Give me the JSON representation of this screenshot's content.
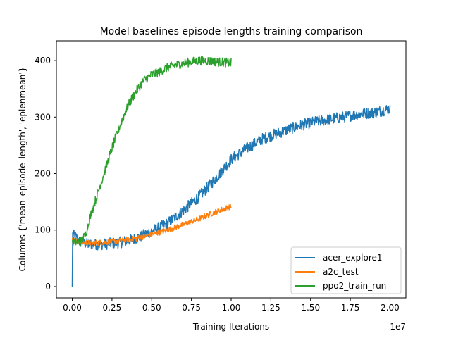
{
  "chart_data": {
    "type": "line",
    "title": "Model baselines episode lengths training comparison",
    "xlabel": "Training Iterations",
    "ylabel": "Columns {'mean_episode_length', 'eplenmean'}",
    "x_scale_label": "1e7",
    "xlim": [
      -0.1,
      2.1
    ],
    "ylim": [
      -20,
      435
    ],
    "x_ticks": [
      0.0,
      0.25,
      0.5,
      0.75,
      1.0,
      1.25,
      1.5,
      1.75,
      2.0
    ],
    "x_tick_labels": [
      "0.00",
      "0.25",
      "0.50",
      "0.75",
      "1.00",
      "1.25",
      "1.50",
      "1.75",
      "2.00"
    ],
    "y_ticks": [
      0,
      100,
      200,
      300,
      400
    ],
    "y_tick_labels": [
      "0",
      "100",
      "200",
      "300",
      "400"
    ],
    "legend_position": "lower-right",
    "series": [
      {
        "name": "acer_explore1",
        "color": "#1f77b4",
        "noise": 10,
        "points": [
          [
            0.0,
            0
          ],
          [
            0.002,
            92
          ],
          [
            0.02,
            88
          ],
          [
            0.05,
            80
          ],
          [
            0.1,
            75
          ],
          [
            0.2,
            75
          ],
          [
            0.3,
            78
          ],
          [
            0.4,
            85
          ],
          [
            0.5,
            98
          ],
          [
            0.6,
            112
          ],
          [
            0.7,
            135
          ],
          [
            0.8,
            160
          ],
          [
            0.9,
            190
          ],
          [
            1.0,
            225
          ],
          [
            1.1,
            245
          ],
          [
            1.2,
            262
          ],
          [
            1.3,
            272
          ],
          [
            1.4,
            282
          ],
          [
            1.5,
            290
          ],
          [
            1.6,
            295
          ],
          [
            1.7,
            300
          ],
          [
            1.8,
            305
          ],
          [
            1.9,
            308
          ],
          [
            2.0,
            315
          ]
        ]
      },
      {
        "name": "a2c_test",
        "color": "#ff7f0e",
        "noise": 5,
        "points": [
          [
            0.0,
            82
          ],
          [
            0.1,
            77
          ],
          [
            0.2,
            78
          ],
          [
            0.3,
            81
          ],
          [
            0.4,
            85
          ],
          [
            0.5,
            92
          ],
          [
            0.6,
            100
          ],
          [
            0.7,
            110
          ],
          [
            0.8,
            120
          ],
          [
            0.9,
            132
          ],
          [
            1.0,
            142
          ]
        ]
      },
      {
        "name": "ppo2_train_run",
        "color": "#2ca02c",
        "noise": 8,
        "points": [
          [
            0.0,
            80
          ],
          [
            0.05,
            78
          ],
          [
            0.08,
            90
          ],
          [
            0.12,
            130
          ],
          [
            0.16,
            165
          ],
          [
            0.2,
            200
          ],
          [
            0.25,
            245
          ],
          [
            0.3,
            285
          ],
          [
            0.35,
            320
          ],
          [
            0.4,
            345
          ],
          [
            0.45,
            365
          ],
          [
            0.5,
            375
          ],
          [
            0.55,
            380
          ],
          [
            0.6,
            388
          ],
          [
            0.65,
            392
          ],
          [
            0.7,
            395
          ],
          [
            0.75,
            398
          ],
          [
            0.8,
            400
          ],
          [
            0.85,
            400
          ],
          [
            0.9,
            398
          ],
          [
            0.95,
            397
          ],
          [
            1.0,
            396
          ]
        ]
      }
    ]
  }
}
